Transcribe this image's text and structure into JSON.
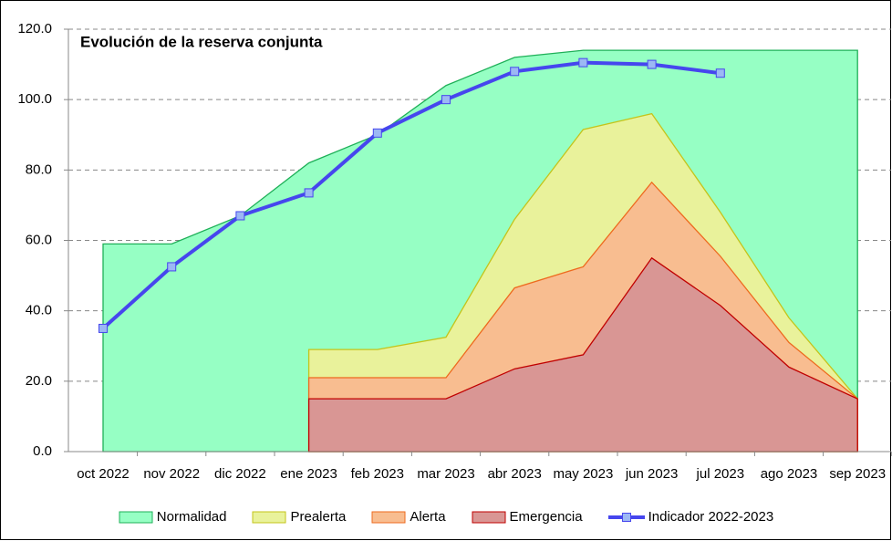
{
  "chart_data": {
    "type": "area",
    "title": "Evolución de la reserva conjunta",
    "categories": [
      "oct 2022",
      "nov 2022",
      "dic 2022",
      "ene 2023",
      "feb 2023",
      "mar 2023",
      "abr 2023",
      "may 2023",
      "jun 2023",
      "jul 2023",
      "ago 2023",
      "sep 2023"
    ],
    "series": [
      {
        "name": "Normalidad",
        "color": "#96ffc4",
        "stroke": "#1eb058",
        "values": [
          59,
          59,
          67,
          82,
          90,
          104,
          112,
          114,
          114,
          114,
          114,
          114
        ]
      },
      {
        "name": "Prealerta",
        "color": "#e9f29b",
        "stroke": "#c4c41a",
        "values": [
          null,
          null,
          null,
          29,
          29,
          32.5,
          66,
          91.5,
          96,
          68,
          38,
          15
        ]
      },
      {
        "name": "Alerta",
        "color": "#f8bd90",
        "stroke": "#ee6a1e",
        "values": [
          null,
          null,
          null,
          21,
          21,
          21,
          46.5,
          52.5,
          76.5,
          55.5,
          31,
          15
        ]
      },
      {
        "name": "Emergencia",
        "color": "#d99694",
        "stroke": "#c00000",
        "values": [
          null,
          null,
          null,
          15,
          15,
          15,
          23.5,
          27.5,
          55,
          41.5,
          24,
          15
        ]
      },
      {
        "name": "Indicador 2022-2023",
        "type": "line",
        "color": "#4646ee",
        "marker_color": "#9cb8f4",
        "values": [
          35,
          52.5,
          67,
          73.5,
          90.5,
          100,
          108,
          110.5,
          110,
          107.5,
          null,
          null
        ]
      }
    ],
    "ylim": [
      0,
      120
    ],
    "yticks": [
      {
        "value": 0,
        "label": "0.0"
      },
      {
        "value": 20,
        "label": "20.0"
      },
      {
        "value": 40,
        "label": "40.0"
      },
      {
        "value": 60,
        "label": "60.0"
      },
      {
        "value": 80,
        "label": "80.0"
      },
      {
        "value": 100,
        "label": "100.0"
      },
      {
        "value": 120,
        "label": "120.0"
      }
    ],
    "grid": true
  }
}
